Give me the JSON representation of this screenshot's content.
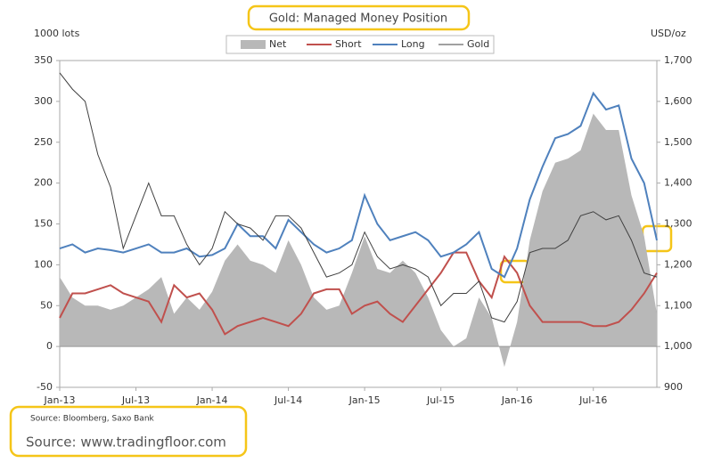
{
  "chart_data": {
    "type": "line",
    "title": "Gold:  Managed Money Position",
    "y_label": "1000 lots",
    "y2_label": "USD/oz",
    "source": "Source: Bloomberg, Saxo Bank",
    "credit": "Source: www.tradingfloor.com",
    "categories": [
      "Jan-13",
      null,
      null,
      null,
      null,
      null,
      "Jul-13",
      null,
      null,
      null,
      null,
      null,
      "Jan-14",
      null,
      null,
      null,
      null,
      null,
      "Jul-14",
      null,
      null,
      null,
      null,
      null,
      "Jan-15",
      null,
      null,
      null,
      null,
      null,
      "Jul-15",
      null,
      null,
      null,
      null,
      null,
      "Jan-16",
      null,
      null,
      null,
      null,
      null,
      "Jul-16",
      null,
      null,
      null,
      null,
      null
    ],
    "series": [
      {
        "name": "Net",
        "kind": "area",
        "color": "#b8b8b8",
        "values": [
          85,
          60,
          50,
          50,
          45,
          50,
          60,
          70,
          85,
          40,
          60,
          45,
          67,
          105,
          125,
          105,
          100,
          90,
          130,
          100,
          60,
          45,
          50,
          90,
          135,
          95,
          90,
          105,
          90,
          60,
          20,
          0,
          10,
          60,
          35,
          -25,
          30,
          130,
          190,
          225,
          230,
          240,
          285,
          265,
          265,
          185,
          135,
          40
        ]
      },
      {
        "name": "Short",
        "kind": "line",
        "color": "#c0504d",
        "values": [
          35,
          65,
          65,
          70,
          75,
          65,
          60,
          55,
          30,
          75,
          60,
          65,
          45,
          15,
          25,
          30,
          35,
          30,
          25,
          40,
          65,
          70,
          70,
          40,
          50,
          55,
          40,
          30,
          50,
          70,
          90,
          115,
          115,
          80,
          60,
          110,
          90,
          50,
          30,
          30,
          30,
          30,
          25,
          25,
          30,
          45,
          65,
          90
        ]
      },
      {
        "name": "Long",
        "kind": "line",
        "color": "#4f81bd",
        "values": [
          120,
          125,
          115,
          120,
          118,
          115,
          120,
          125,
          115,
          115,
          120,
          110,
          112,
          120,
          150,
          135,
          135,
          120,
          155,
          140,
          125,
          115,
          120,
          130,
          185,
          150,
          130,
          135,
          140,
          130,
          110,
          115,
          125,
          140,
          95,
          85,
          120,
          180,
          220,
          255,
          260,
          270,
          310,
          290,
          295,
          230,
          200,
          130
        ]
      },
      {
        "name": "Gold",
        "kind": "line",
        "axis": "y2",
        "color": "#404040",
        "values": [
          1670,
          1630,
          1600,
          1470,
          1390,
          1240,
          1320,
          1400,
          1320,
          1320,
          1250,
          1200,
          1240,
          1330,
          1300,
          1290,
          1260,
          1320,
          1320,
          1290,
          1230,
          1170,
          1180,
          1200,
          1280,
          1220,
          1190,
          1200,
          1190,
          1170,
          1100,
          1130,
          1130,
          1160,
          1070,
          1060,
          1110,
          1230,
          1240,
          1240,
          1260,
          1320,
          1330,
          1310,
          1320,
          1260,
          1180,
          1170
        ]
      }
    ],
    "ylim": [
      -50,
      350
    ],
    "yticks": [
      -50,
      0,
      50,
      100,
      150,
      200,
      250,
      300,
      350
    ],
    "y2lim": [
      900,
      1700
    ],
    "y2ticks": [
      900,
      {
        "value": 1000,
        "label": "1,000"
      },
      {
        "value": 1100,
        "label": "1,100"
      },
      {
        "value": 1200,
        "label": "1,200"
      },
      {
        "value": 1300,
        "label": "1,300"
      },
      {
        "value": 1400,
        "label": "1,400"
      },
      {
        "value": 1500,
        "label": "1,500"
      },
      {
        "value": 1600,
        "label": "1,600"
      },
      {
        "value": 1700,
        "label": "1,700"
      }
    ],
    "grid": false
  }
}
